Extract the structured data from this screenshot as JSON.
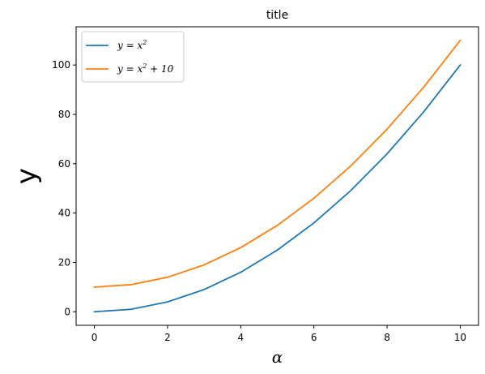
{
  "chart_data": {
    "type": "line",
    "title": "title",
    "xlabel": "α",
    "ylabel": "y",
    "xlim": [
      -0.5,
      10.5
    ],
    "ylim": [
      -5.5,
      115.5
    ],
    "xticks": [
      0,
      2,
      4,
      6,
      8,
      10
    ],
    "yticks": [
      0,
      20,
      40,
      60,
      80,
      100
    ],
    "grid": false,
    "legend_position": "top-left",
    "x": [
      0,
      1,
      2,
      3,
      4,
      5,
      6,
      7,
      8,
      9,
      10
    ],
    "series": [
      {
        "name": "y = x^2",
        "name_base": "y = x",
        "name_sup": "2",
        "name_tail": "",
        "color": "#1f77b4",
        "values": [
          0,
          1,
          4,
          9,
          16,
          25,
          36,
          49,
          64,
          81,
          100
        ]
      },
      {
        "name": "y = x^2 + 10",
        "name_base": "y = x",
        "name_sup": "2",
        "name_tail": " + 10",
        "color": "#ff7f0e",
        "values": [
          10,
          11,
          14,
          19,
          26,
          35,
          46,
          59,
          74,
          91,
          110
        ]
      }
    ]
  }
}
